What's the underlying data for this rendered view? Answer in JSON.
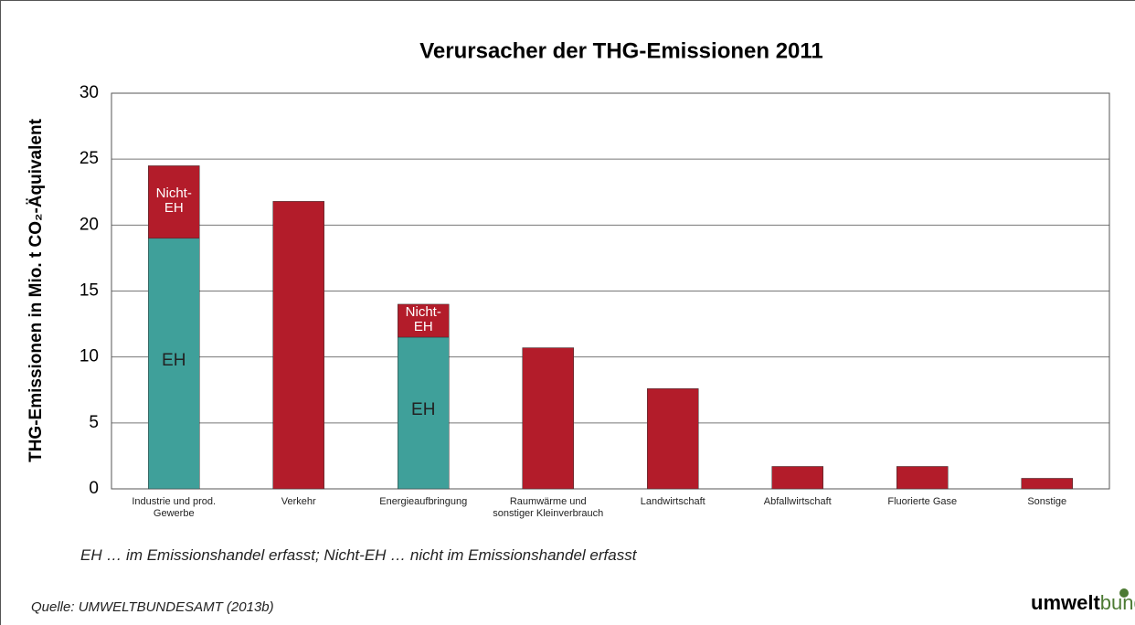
{
  "chart_data": {
    "type": "stacked_bar",
    "title": "Verursacher der THG-Emissionen 2011",
    "y_label": "THG-Emissionen in Mio. t CO₂-Äquivalent",
    "categories": [
      "Industrie und prod. Gewerbe",
      "Verkehr",
      "Energieaufbringung",
      "Raumwärme und sonstiger Kleinverbrauch",
      "Landwirtschaft",
      "Abfallwirtschaft",
      "Fluorierte Gase",
      "Sonstige"
    ],
    "series": [
      {
        "name": "EH",
        "color": "#3fa09a",
        "values": [
          19.0,
          null,
          11.5,
          null,
          null,
          null,
          null,
          null
        ]
      },
      {
        "name": "Nicht-EH",
        "color": "#b31c2a",
        "values": [
          5.5,
          21.8,
          2.5,
          10.7,
          7.6,
          1.7,
          1.7,
          0.8
        ]
      }
    ],
    "ylim": [
      0,
      30
    ],
    "yticks": [
      0,
      5,
      10,
      15,
      20,
      25,
      30
    ],
    "grid": true,
    "footnote": "EH … im Emissionshandel erfasst; Nicht-EH … nicht im Emissionshandel erfasst",
    "source": "Quelle: UMWELTBUNDESAMT (2013b)",
    "logo": {
      "bold": "umwelt",
      "rest": "bundesamt"
    }
  }
}
